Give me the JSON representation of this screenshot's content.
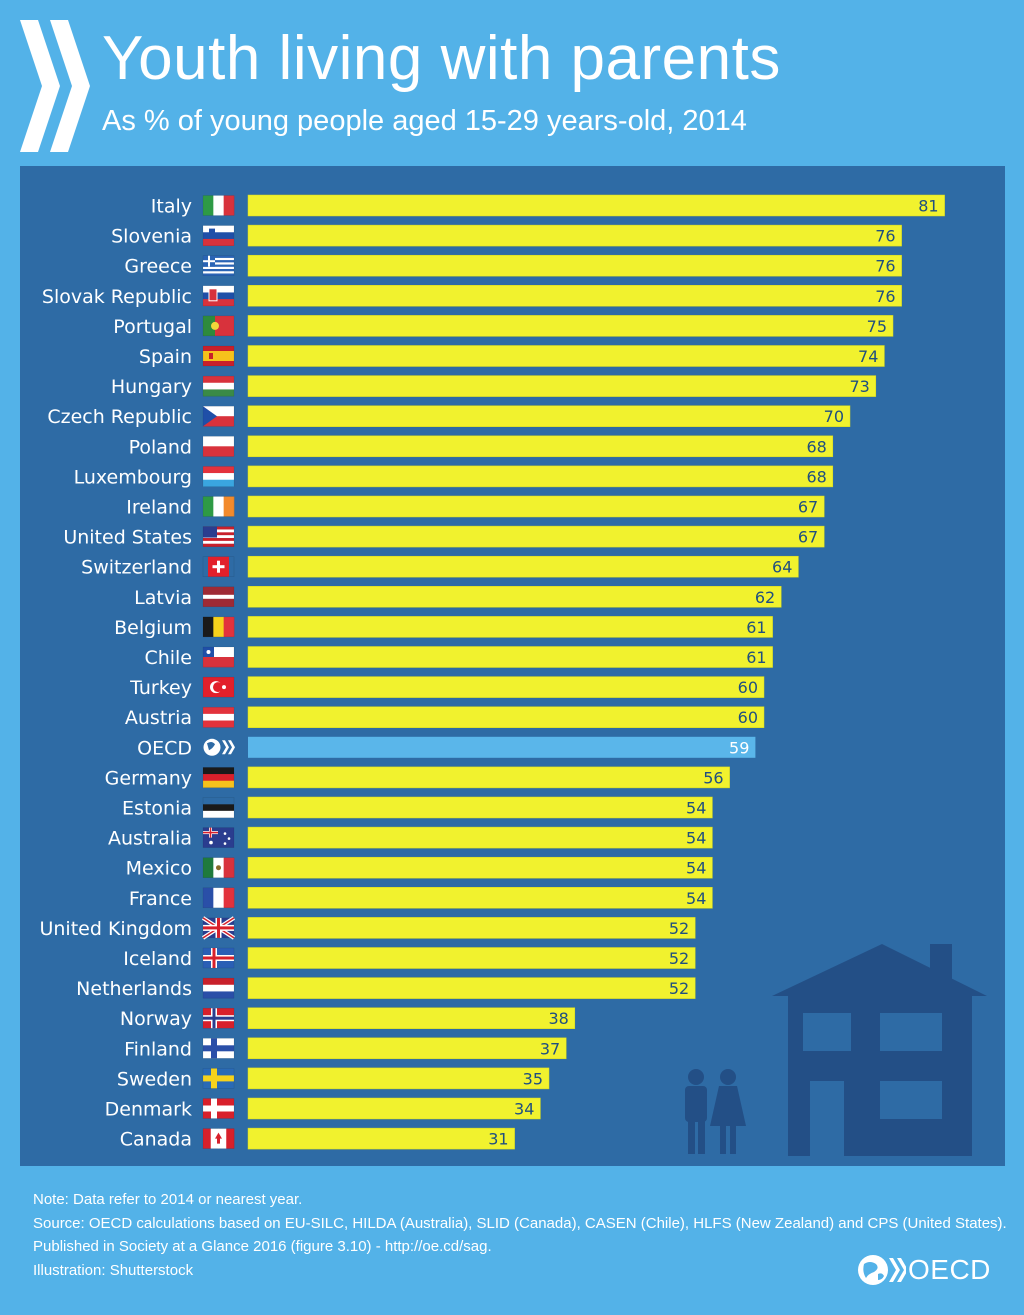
{
  "header": {
    "title": "Youth living with parents",
    "subtitle": "As % of young people aged 15-29 years-old, 2014"
  },
  "colors": {
    "background": "#53b2e8",
    "panel": "#2e6ba5",
    "bar": "#f1f22e",
    "bar_highlight": "#5ab6ea",
    "bar_label": "#1f4f80"
  },
  "chart_data": {
    "type": "bar",
    "orientation": "horizontal",
    "title": "Youth living with parents",
    "subtitle": "As % of young people aged 15-29 years-old, 2014",
    "xlim": [
      0,
      100
    ],
    "grid": false,
    "legend": "none",
    "highlight": "OECD",
    "categories": [
      "Italy",
      "Slovenia",
      "Greece",
      "Slovak Republic",
      "Portugal",
      "Spain",
      "Hungary",
      "Czech Republic",
      "Poland",
      "Luxembourg",
      "Ireland",
      "United States",
      "Switzerland",
      "Latvia",
      "Belgium",
      "Chile",
      "Turkey",
      "Austria",
      "OECD",
      "Germany",
      "Estonia",
      "Australia",
      "Mexico",
      "France",
      "United Kingdom",
      "Iceland",
      "Netherlands",
      "Norway",
      "Finland",
      "Sweden",
      "Denmark",
      "Canada"
    ],
    "values": [
      81,
      76,
      76,
      76,
      75,
      74,
      73,
      70,
      68,
      68,
      67,
      67,
      64,
      62,
      61,
      61,
      60,
      60,
      59,
      56,
      54,
      54,
      54,
      54,
      52,
      52,
      52,
      38,
      37,
      35,
      34,
      31
    ],
    "flags": [
      "italy-flag-icon",
      "slovenia-flag-icon",
      "greece-flag-icon",
      "slovakia-flag-icon",
      "portugal-flag-icon",
      "spain-flag-icon",
      "hungary-flag-icon",
      "czech-flag-icon",
      "poland-flag-icon",
      "luxembourg-flag-icon",
      "ireland-flag-icon",
      "usa-flag-icon",
      "switzerland-flag-icon",
      "latvia-flag-icon",
      "belgium-flag-icon",
      "chile-flag-icon",
      "turkey-flag-icon",
      "austria-flag-icon",
      "oecd-logo-icon",
      "germany-flag-icon",
      "estonia-flag-icon",
      "australia-flag-icon",
      "mexico-flag-icon",
      "france-flag-icon",
      "uk-flag-icon",
      "iceland-flag-icon",
      "netherlands-flag-icon",
      "norway-flag-icon",
      "finland-flag-icon",
      "sweden-flag-icon",
      "denmark-flag-icon",
      "canada-flag-icon"
    ]
  },
  "illustration": {
    "house_icon": "house-icon",
    "people_icon": "couple-icon"
  },
  "footer": {
    "note": "Note: Data refer to 2014 or nearest year.",
    "source": "Source: OECD calculations based on EU-SILC, HILDA (Australia), SLID (Canada), CASEN (Chile), HLFS (New Zealand) and CPS (United States).",
    "published": "Published in Society at a Glance 2016 (figure 3.10) - http://oe.cd/sag.",
    "illustration": "Illustration: Shutterstock",
    "brand": "OECD"
  }
}
